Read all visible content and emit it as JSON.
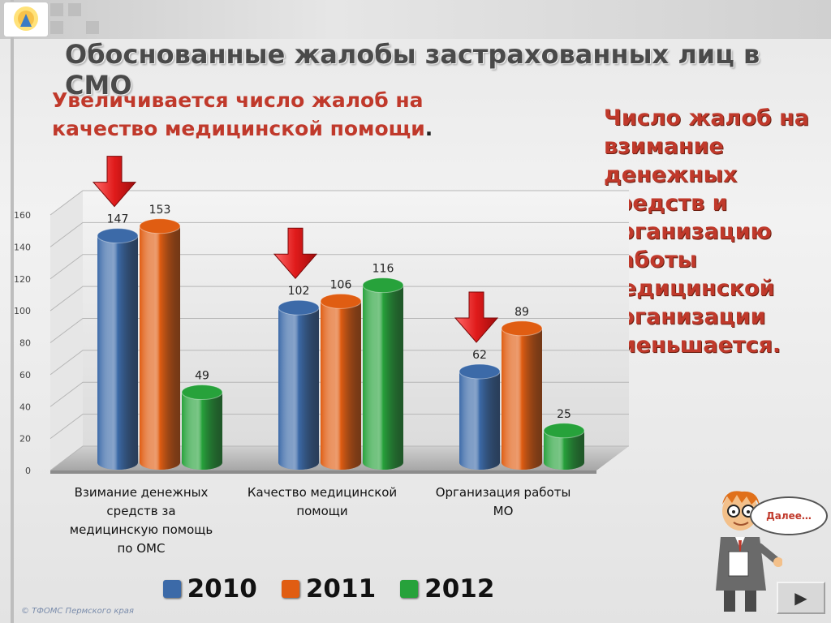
{
  "slide": {
    "title": "Обоснованные жалобы застрахованных лиц в СМО",
    "subtitle_line1": "Увеличивается число жалоб на",
    "subtitle_line2": "качество медицинской помощи",
    "subtitle_dot": ".",
    "side_note": "Число жалоб на взимание денежных средств и организацию работы медицинской организации уменьшается.",
    "copyright": "© ТФОМС Пермского края",
    "speech_bubble": "Далее…",
    "next_icon": "play-arrow-icon",
    "next_symbol": "▶"
  },
  "colors": {
    "2010": "#3c6aa8",
    "2011": "#e05d12",
    "2012": "#27a23b",
    "subtitle": "#c0392b",
    "arrow": "#e01b1b"
  },
  "chart_data": {
    "type": "bar",
    "categories": [
      "Взимание денежных средств за медицинскую помощь по ОМС",
      "Качество медицинской помощи",
      "Организация работы МО"
    ],
    "category_lines": [
      [
        "Взимание денежных",
        "средств за",
        "медицинскую помощь",
        "по ОМС"
      ],
      [
        "Качество медицинской",
        "помощи"
      ],
      [
        "Организация работы",
        "МО"
      ]
    ],
    "series": [
      {
        "name": "2010",
        "values": [
          147,
          102,
          62
        ]
      },
      {
        "name": "2011",
        "values": [
          153,
          106,
          89
        ]
      },
      {
        "name": "2012",
        "values": [
          49,
          116,
          25
        ]
      }
    ],
    "ylim": [
      0,
      160
    ],
    "yticks": [
      0,
      20,
      40,
      60,
      80,
      100,
      120,
      140,
      160
    ],
    "grid": true,
    "legend": "bottom",
    "highlight_arrows_over_series": "2010",
    "bar_style": "3d-cylinder"
  }
}
